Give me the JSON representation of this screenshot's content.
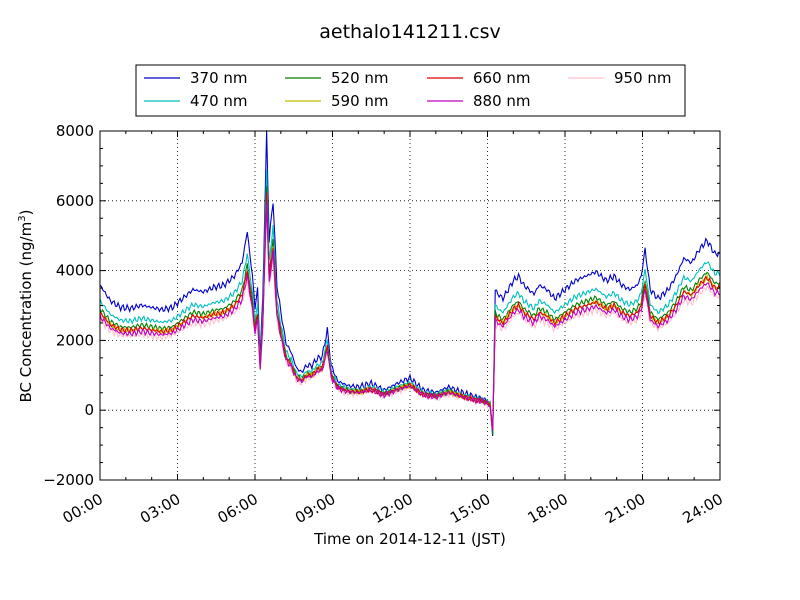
{
  "chart_data": {
    "type": "line",
    "title": "aethalo141211.csv",
    "xlabel": "Time on 2014-12-11 (JST)",
    "ylabel_main": "BC Concentration (ng/m",
    "ylabel_sup": "3",
    "ylabel_close": ")",
    "xlim": [
      0,
      24
    ],
    "ylim": [
      -2000,
      8000
    ],
    "x_ticks": [
      0,
      3,
      6,
      9,
      12,
      15,
      18,
      21,
      24
    ],
    "x_tick_labels": [
      "00:00",
      "03:00",
      "06:00",
      "09:00",
      "12:00",
      "15:00",
      "18:00",
      "21:00",
      "24:00"
    ],
    "y_ticks": [
      -2000,
      0,
      2000,
      4000,
      6000,
      8000
    ],
    "y_tick_labels": [
      "−2000",
      "0",
      "2000",
      "4000",
      "6000",
      "8000"
    ],
    "grid": true,
    "legend_position": "top",
    "base_curve": {
      "x": [
        0,
        0.4,
        0.8,
        1.2,
        1.6,
        2.0,
        2.4,
        2.8,
        3.2,
        3.6,
        4.0,
        4.4,
        4.8,
        5.2,
        5.5,
        5.7,
        5.9,
        6.0,
        6.1,
        6.2,
        6.3,
        6.45,
        6.55,
        6.7,
        6.85,
        7.0,
        7.2,
        7.4,
        7.6,
        7.8,
        8.0,
        8.2,
        8.4,
        8.6,
        8.8,
        8.95,
        9.2,
        9.6,
        10.0,
        10.5,
        11.0,
        11.5,
        12.0,
        12.5,
        13.0,
        13.5,
        14.0,
        14.5,
        14.9,
        15.1,
        15.2,
        15.3,
        15.4,
        15.6,
        15.8,
        16.0,
        16.2,
        16.4,
        16.6,
        16.8,
        17.0,
        17.3,
        17.6,
        18.0,
        18.4,
        18.8,
        19.2,
        19.6,
        19.9,
        20.2,
        20.5,
        20.8,
        20.95,
        21.1,
        21.3,
        21.6,
        22.0,
        22.3,
        22.6,
        22.9,
        23.2,
        23.5,
        23.8,
        24.0
      ],
      "y": [
        2800,
        2450,
        2300,
        2280,
        2350,
        2300,
        2250,
        2300,
        2500,
        2700,
        2650,
        2750,
        2800,
        3000,
        3300,
        4000,
        3000,
        2300,
        2700,
        1200,
        2500,
        6200,
        3800,
        4700,
        2800,
        2200,
        1500,
        1300,
        950,
        850,
        1000,
        1000,
        1150,
        1200,
        1800,
        1000,
        650,
        550,
        520,
        600,
        450,
        600,
        720,
        450,
        400,
        520,
        400,
        300,
        250,
        150,
        -600,
        2700,
        2600,
        2500,
        2700,
        2900,
        3000,
        2800,
        2700,
        2600,
        2800,
        2700,
        2500,
        2700,
        2900,
        3000,
        3100,
        2900,
        3000,
        2800,
        2700,
        2800,
        3000,
        3600,
        2700,
        2500,
        2700,
        3000,
        3400,
        3300,
        3600,
        3800,
        3500,
        3500
      ]
    },
    "series": [
      {
        "name": "370 nm",
        "color": "#0000cc",
        "scale": 1.28,
        "offset": 0,
        "wiggle": 60
      },
      {
        "name": "470 nm",
        "color": "#00bfbf",
        "scale": 1.12,
        "offset": 0,
        "wiggle": 50
      },
      {
        "name": "520 nm",
        "color": "#008000",
        "scale": 1.04,
        "offset": 0,
        "wiggle": 45
      },
      {
        "name": "590 nm",
        "color": "#bfbf00",
        "scale": 1.0,
        "offset": 0,
        "wiggle": 45
      },
      {
        "name": "660 nm",
        "color": "#dd0000",
        "scale": 1.0,
        "offset": 0,
        "wiggle": 50
      },
      {
        "name": "880 nm",
        "color": "#bf00bf",
        "scale": 0.96,
        "offset": 0,
        "wiggle": 55
      },
      {
        "name": "950 nm",
        "color": "#ffc0cb",
        "scale": 0.93,
        "offset": 0,
        "wiggle": 70
      }
    ]
  }
}
